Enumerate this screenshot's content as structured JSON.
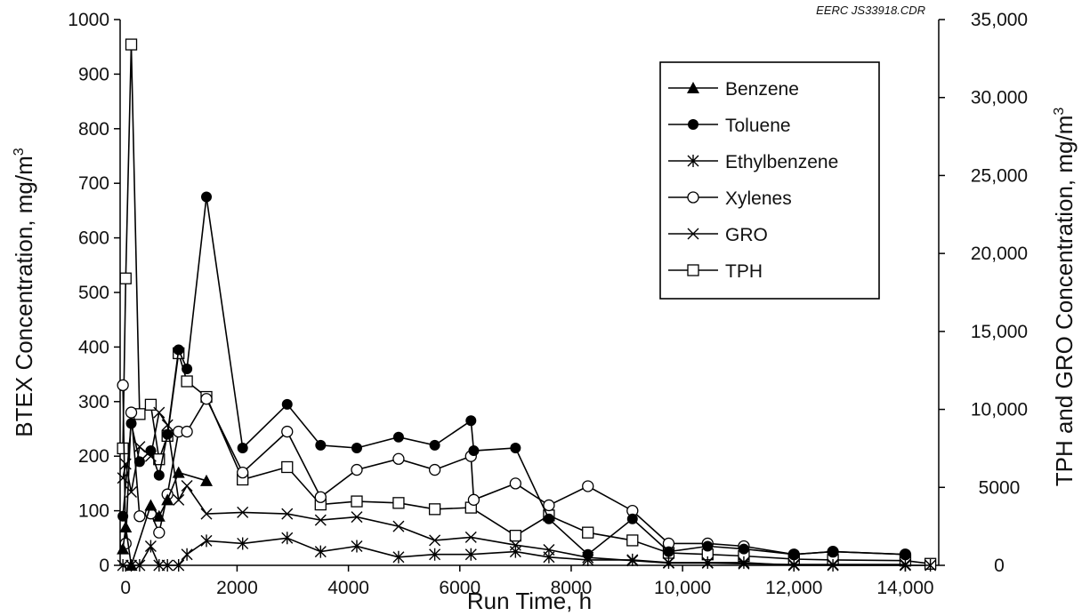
{
  "chart_data": {
    "type": "line",
    "stamp": "EERC JS33918.CDR",
    "xlabel": "Run Time, h",
    "ylabel": "BTEX Concentration, mg/m",
    "ylabel_sup": "3",
    "y2label": "TPH and GRO Concentration, mg/m",
    "y2label_sup": "3",
    "xlim": [
      -100,
      14600
    ],
    "ylim": [
      0,
      1000
    ],
    "y2lim": [
      0,
      35000
    ],
    "x_ticks": [
      {
        "value": 0,
        "label": "0"
      },
      {
        "value": 2000,
        "label": "2000"
      },
      {
        "value": 4000,
        "label": "4000"
      },
      {
        "value": 6000,
        "label": "6000"
      },
      {
        "value": 8000,
        "label": "8000"
      },
      {
        "value": 10000,
        "label": "10,000"
      },
      {
        "value": 12000,
        "label": "12,000"
      },
      {
        "value": 14000,
        "label": "14,000"
      }
    ],
    "y_ticks": [
      {
        "value": 0,
        "label": "0"
      },
      {
        "value": 100,
        "label": "100"
      },
      {
        "value": 200,
        "label": "200"
      },
      {
        "value": 300,
        "label": "300"
      },
      {
        "value": 400,
        "label": "400"
      },
      {
        "value": 500,
        "label": "500"
      },
      {
        "value": 600,
        "label": "600"
      },
      {
        "value": 700,
        "label": "700"
      },
      {
        "value": 800,
        "label": "800"
      },
      {
        "value": 900,
        "label": "900"
      },
      {
        "value": 1000,
        "label": "1000"
      }
    ],
    "y2_ticks": [
      {
        "value": 0,
        "label": "0"
      },
      {
        "value": 5000,
        "label": "5000"
      },
      {
        "value": 10000,
        "label": "10,000"
      },
      {
        "value": 15000,
        "label": "15,000"
      },
      {
        "value": 20000,
        "label": "20,000"
      },
      {
        "value": 25000,
        "label": "25,000"
      },
      {
        "value": 30000,
        "label": "30,000"
      },
      {
        "value": 35000,
        "label": "35,000"
      }
    ],
    "legend_position": "top-right",
    "series": [
      {
        "name": "Benzene",
        "axis": "left",
        "marker": "triangle-filled",
        "x": [
          -50,
          0,
          100,
          450,
          600,
          750,
          950,
          1450
        ],
        "y": [
          30,
          70,
          0,
          110,
          90,
          120,
          170,
          155
        ]
      },
      {
        "name": "Toluene",
        "axis": "left",
        "marker": "circle-filled",
        "x": [
          -50,
          100,
          250,
          450,
          600,
          750,
          950,
          1100,
          1450,
          2100,
          2900,
          3500,
          4150,
          4900,
          5550,
          6200,
          6250,
          7000,
          7600,
          8300,
          9100,
          9750,
          10450,
          11100,
          12000,
          12700,
          14000
        ],
        "y": [
          90,
          260,
          190,
          210,
          165,
          240,
          395,
          360,
          675,
          215,
          295,
          220,
          215,
          235,
          220,
          265,
          210,
          215,
          85,
          20,
          85,
          25,
          35,
          30,
          20,
          25,
          20
        ]
      },
      {
        "name": "Ethylbenzene",
        "axis": "left",
        "marker": "asterisk",
        "x": [
          -50,
          100,
          250,
          450,
          600,
          750,
          950,
          1100,
          1450,
          2100,
          2900,
          3500,
          4150,
          4900,
          5550,
          6200,
          7000,
          7600,
          8300,
          9100,
          9750,
          10450,
          11100,
          12000,
          12700,
          14000,
          14450
        ],
        "y": [
          0,
          0,
          0,
          35,
          0,
          0,
          0,
          20,
          45,
          40,
          50,
          25,
          35,
          15,
          20,
          20,
          25,
          15,
          10,
          10,
          5,
          5,
          5,
          0,
          0,
          0,
          0
        ]
      },
      {
        "name": "Xylenes",
        "axis": "left",
        "marker": "circle-open",
        "x": [
          -50,
          0,
          100,
          250,
          450,
          600,
          750,
          950,
          1100,
          1450,
          2100,
          2900,
          3500,
          4150,
          4900,
          5550,
          6200,
          6250,
          7000,
          7600,
          8300,
          9100,
          9750,
          10450,
          11100,
          12000,
          12700,
          14000
        ],
        "y": [
          330,
          40,
          280,
          90,
          95,
          60,
          130,
          245,
          245,
          305,
          170,
          245,
          125,
          175,
          195,
          175,
          200,
          120,
          150,
          110,
          145,
          100,
          40,
          40,
          35,
          20,
          25,
          20
        ]
      },
      {
        "name": "GRO",
        "axis": "right",
        "marker": "x",
        "x": [
          -50,
          0,
          100,
          250,
          450,
          600,
          750,
          950,
          1100,
          1450,
          2100,
          2900,
          3500,
          4150,
          4900,
          5550,
          6200,
          7000,
          7600,
          8300,
          9100,
          9750,
          10450,
          11100,
          12000,
          12700,
          14000
        ],
        "y": [
          5600,
          6500,
          4700,
          7600,
          7000,
          9800,
          9000,
          4200,
          5100,
          3300,
          3400,
          3300,
          2900,
          3100,
          2500,
          1600,
          1800,
          1300,
          1000,
          500,
          300,
          150,
          150,
          100,
          50,
          50,
          50
        ]
      },
      {
        "name": "TPH",
        "axis": "right",
        "marker": "square-open",
        "x": [
          -50,
          0,
          100,
          250,
          450,
          600,
          750,
          950,
          1100,
          1450,
          2100,
          2900,
          3500,
          4150,
          4900,
          5550,
          6200,
          7000,
          7600,
          8300,
          9100,
          9750,
          10450,
          11100,
          12000,
          12700,
          14000,
          14450
        ],
        "y": [
          7500,
          18400,
          33400,
          9700,
          10300,
          6800,
          8300,
          13600,
          11800,
          10800,
          5500,
          6300,
          3900,
          4100,
          4000,
          3600,
          3700,
          1900,
          3200,
          2100,
          1600,
          800,
          700,
          600,
          400,
          350,
          300,
          100
        ]
      }
    ]
  }
}
